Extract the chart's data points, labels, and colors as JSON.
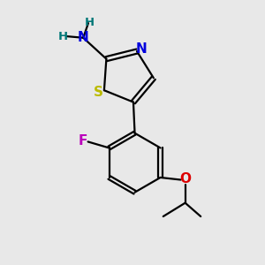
{
  "bg_color": "#e8e8e8",
  "colors": {
    "C": "#000000",
    "N": "#0000dd",
    "S": "#bbbb00",
    "O": "#dd0000",
    "F": "#bb00bb",
    "H": "#007777"
  },
  "figsize": [
    3.0,
    3.0
  ],
  "dpi": 100,
  "lw": 1.6,
  "fs": 9.5
}
